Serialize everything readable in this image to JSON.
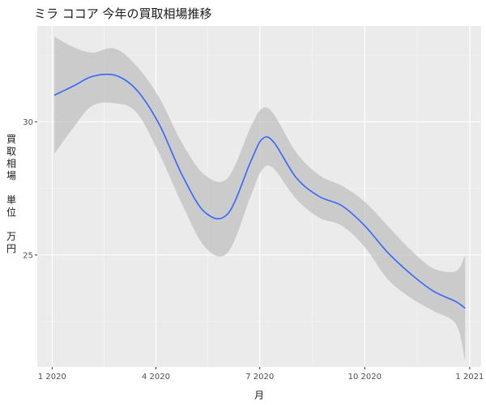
{
  "chart_data": {
    "type": "line",
    "title": "ミラ ココア 今年の買取相場推移",
    "xlabel": "月",
    "ylabel": [
      "買",
      "取",
      "相",
      "場",
      "",
      "単",
      "位",
      "",
      "万",
      "円"
    ],
    "x_range": [
      "2019-12-19",
      "2021-01-11"
    ],
    "y_range": [
      20.8,
      33.6
    ],
    "x_ticks": [
      {
        "date": "2020-01-01",
        "label": "1 2020"
      },
      {
        "date": "2020-04-01",
        "label": "4 2020"
      },
      {
        "date": "2020-07-01",
        "label": "7 2020"
      },
      {
        "date": "2020-10-01",
        "label": "10 2020"
      },
      {
        "date": "2021-01-01",
        "label": "1 2021"
      }
    ],
    "y_ticks": [
      25,
      30
    ],
    "grid": true,
    "legend": "none",
    "colors": {
      "panel": "#ebebeb",
      "grid_major": "#ffffff",
      "grid_minor": "#f5f5f5",
      "line": "#3366ff",
      "ribbon": "#bdbdbd"
    },
    "series": [
      {
        "points": [
          {
            "x": "2020-01-03",
            "y": 31.0,
            "ymin": 28.8,
            "ymax": 33.2
          },
          {
            "x": "2020-01-20",
            "y": 31.35,
            "ymin": 29.8,
            "ymax": 32.8
          },
          {
            "x": "2020-02-05",
            "y": 31.7,
            "ymin": 30.6,
            "ymax": 32.6
          },
          {
            "x": "2020-02-25",
            "y": 31.75,
            "ymin": 30.7,
            "ymax": 32.75
          },
          {
            "x": "2020-03-15",
            "y": 31.2,
            "ymin": 30.35,
            "ymax": 32.1
          },
          {
            "x": "2020-04-04",
            "y": 29.9,
            "ymin": 28.8,
            "ymax": 30.9
          },
          {
            "x": "2020-04-24",
            "y": 28.0,
            "ymin": 26.9,
            "ymax": 29.2
          },
          {
            "x": "2020-05-14",
            "y": 26.6,
            "ymin": 25.3,
            "ymax": 28.0
          },
          {
            "x": "2020-06-03",
            "y": 26.55,
            "ymin": 25.1,
            "ymax": 27.9
          },
          {
            "x": "2020-06-23",
            "y": 28.5,
            "ymin": 27.2,
            "ymax": 29.8
          },
          {
            "x": "2020-07-03",
            "y": 29.35,
            "ymin": 28.2,
            "ymax": 30.5
          },
          {
            "x": "2020-07-13",
            "y": 29.25,
            "ymin": 28.25,
            "ymax": 30.3
          },
          {
            "x": "2020-08-02",
            "y": 27.9,
            "ymin": 27.1,
            "ymax": 28.85
          },
          {
            "x": "2020-08-22",
            "y": 27.2,
            "ymin": 26.4,
            "ymax": 28.0
          },
          {
            "x": "2020-09-11",
            "y": 26.85,
            "ymin": 26.1,
            "ymax": 27.6
          },
          {
            "x": "2020-10-01",
            "y": 26.1,
            "ymin": 25.3,
            "ymax": 27.0
          },
          {
            "x": "2020-10-21",
            "y": 25.1,
            "ymin": 24.1,
            "ymax": 26.1
          },
          {
            "x": "2020-11-10",
            "y": 24.3,
            "ymin": 23.4,
            "ymax": 25.2
          },
          {
            "x": "2020-11-30",
            "y": 23.65,
            "ymin": 22.9,
            "ymax": 24.5
          },
          {
            "x": "2020-12-20",
            "y": 23.25,
            "ymin": 22.4,
            "ymax": 24.4
          },
          {
            "x": "2020-12-28",
            "y": 23.0,
            "ymin": 21.0,
            "ymax": 25.0
          }
        ]
      }
    ]
  }
}
